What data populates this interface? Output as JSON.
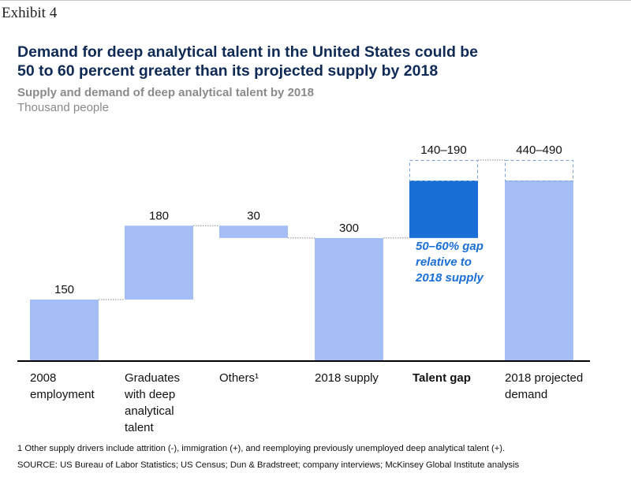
{
  "exhibit": "Exhibit 4",
  "title_line1": "Demand for deep analytical talent in the United States could be",
  "title_line2": "50 to 60 percent greater than its projected supply by 2018",
  "subtitle": "Supply and demand of deep analytical talent by 2018",
  "unit": "Thousand people",
  "gap_note": [
    "50–60% gap",
    "relative to",
    "2018 supply"
  ],
  "footnote": "1 Other supply drivers include attrition (-), immigration (+), and reemploying previously unemployed deep analytical talent (+).",
  "source": "SOURCE: US Bureau of Labor Statistics; US Census; Dun & Bradstreet; company interviews; McKinsey Global Institute analysis",
  "colors": {
    "bar": "#a4bdf5",
    "gap": "#1a6fd6",
    "title": "#0e2a55",
    "range": "#7aa6df"
  },
  "chart_data": {
    "type": "bar",
    "subtype": "waterfall",
    "categories": [
      [
        "2008",
        "employment"
      ],
      [
        "Graduates",
        "with deep",
        "analytical",
        "talent"
      ],
      [
        "Others¹"
      ],
      [
        "2018 supply"
      ],
      [
        "Talent gap"
      ],
      [
        "2018 projected",
        "demand"
      ]
    ],
    "labels": [
      "150",
      "180",
      "30",
      "300",
      "140–190",
      "440–490"
    ],
    "bars": [
      {
        "start": 0,
        "end": 150,
        "kind": "total"
      },
      {
        "start": 150,
        "end": 330,
        "kind": "increase"
      },
      {
        "start": 300,
        "end": 330,
        "kind": "decrease"
      },
      {
        "start": 0,
        "end": 300,
        "kind": "total"
      },
      {
        "start": 300,
        "end": 440,
        "range_end": 490,
        "kind": "gap"
      },
      {
        "start": 0,
        "end": 440,
        "range_end": 490,
        "kind": "total"
      }
    ],
    "ylim": [
      0,
      490
    ]
  }
}
